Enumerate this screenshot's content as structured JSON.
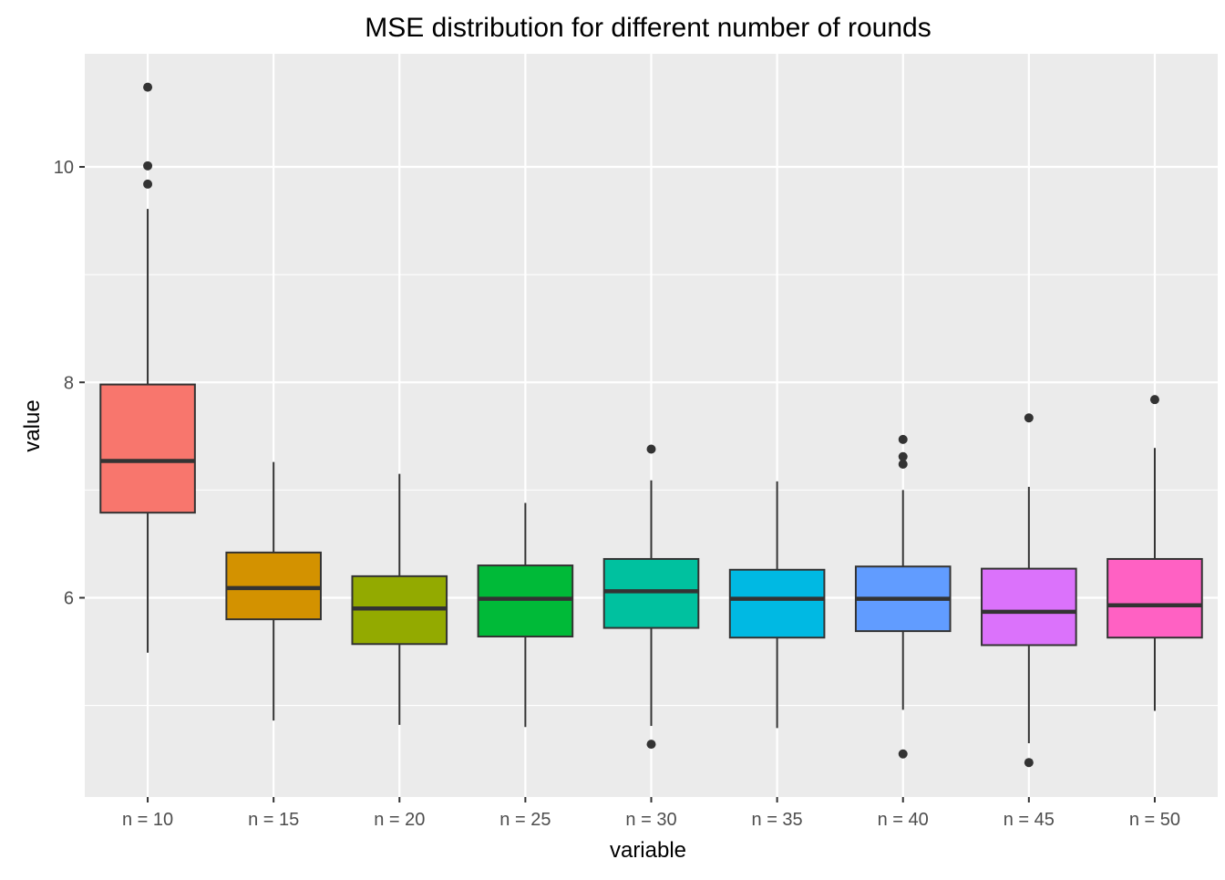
{
  "chart_data": {
    "type": "box",
    "title": "MSE distribution for different number of rounds",
    "xlabel": "variable",
    "ylabel": "value",
    "ylim": [
      4.15,
      11.05
    ],
    "y_ticks": [
      6,
      8,
      10
    ],
    "y_minor_ticks": [
      5,
      7,
      9
    ],
    "grid": true,
    "categories": [
      "n = 10",
      "n = 15",
      "n = 20",
      "n = 25",
      "n = 30",
      "n = 35",
      "n = 40",
      "n = 45",
      "n = 50"
    ],
    "boxes": [
      {
        "category": "n = 10",
        "color": "#F8766D",
        "whisker_low": 5.49,
        "q1": 6.79,
        "median": 7.27,
        "q3": 7.98,
        "whisker_high": 9.61,
        "outliers": [
          9.84,
          10.01,
          10.74
        ]
      },
      {
        "category": "n = 15",
        "color": "#D39200",
        "whisker_low": 4.86,
        "q1": 5.8,
        "median": 6.09,
        "q3": 6.42,
        "whisker_high": 7.26,
        "outliers": []
      },
      {
        "category": "n = 20",
        "color": "#93AA00",
        "whisker_low": 4.82,
        "q1": 5.57,
        "median": 5.9,
        "q3": 6.2,
        "whisker_high": 7.15,
        "outliers": []
      },
      {
        "category": "n = 25",
        "color": "#00BA38",
        "whisker_low": 4.8,
        "q1": 5.64,
        "median": 5.99,
        "q3": 6.3,
        "whisker_high": 6.88,
        "outliers": []
      },
      {
        "category": "n = 30",
        "color": "#00C19F",
        "whisker_low": 4.81,
        "q1": 5.72,
        "median": 6.06,
        "q3": 6.36,
        "whisker_high": 7.09,
        "outliers": [
          4.64,
          7.38
        ]
      },
      {
        "category": "n = 35",
        "color": "#00B9E3",
        "whisker_low": 4.79,
        "q1": 5.63,
        "median": 5.99,
        "q3": 6.26,
        "whisker_high": 7.08,
        "outliers": []
      },
      {
        "category": "n = 40",
        "color": "#619CFF",
        "whisker_low": 4.96,
        "q1": 5.69,
        "median": 5.99,
        "q3": 6.29,
        "whisker_high": 7.0,
        "outliers": [
          4.55,
          7.24,
          7.31,
          7.47
        ]
      },
      {
        "category": "n = 45",
        "color": "#DB72FB",
        "whisker_low": 4.65,
        "q1": 5.56,
        "median": 5.87,
        "q3": 6.27,
        "whisker_high": 7.03,
        "outliers": [
          4.47,
          7.67
        ]
      },
      {
        "category": "n = 50",
        "color": "#FF61C3",
        "whisker_low": 4.95,
        "q1": 5.63,
        "median": 5.93,
        "q3": 6.36,
        "whisker_high": 7.39,
        "outliers": [
          7.84
        ]
      }
    ],
    "colors": {
      "panel_background": "#EBEBEB",
      "grid_line": "#FFFFFF",
      "box_outline": "#333333",
      "tick_label": "#4D4D4D",
      "title_text": "#000000"
    }
  }
}
